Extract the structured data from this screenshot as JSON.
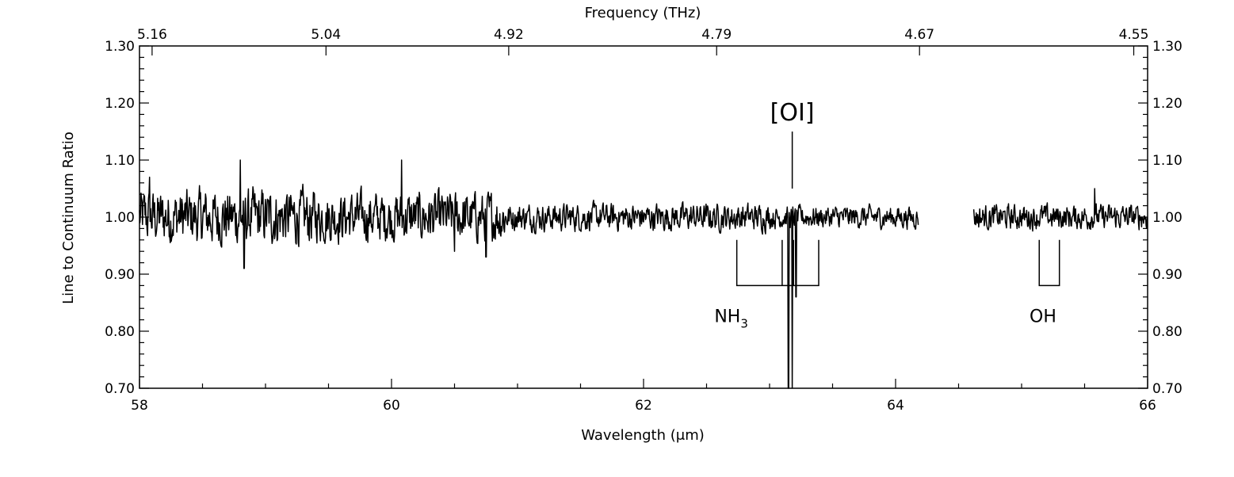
{
  "chart_data": {
    "type": "line",
    "title": "",
    "xlabel": "Wavelength (μm)",
    "x2label": "Frequency (THz)",
    "ylabel": "Line to Continuum Ratio",
    "xlim": [
      58,
      66
    ],
    "ylim": [
      0.7,
      1.3
    ],
    "xticks": [
      "58",
      "60",
      "62",
      "64",
      "66"
    ],
    "xtick_values": [
      58,
      60,
      62,
      64,
      66
    ],
    "x2ticks": [
      "5.16",
      "5.04",
      "4.92",
      "4.79",
      "4.67",
      "4.55"
    ],
    "x2tick_wavelengths": [
      58.1,
      59.48,
      60.93,
      62.58,
      64.19,
      65.89
    ],
    "yticks": [
      "0.70",
      "0.80",
      "0.90",
      "1.00",
      "1.10",
      "1.20",
      "1.30"
    ],
    "ytick_values": [
      0.7,
      0.8,
      0.9,
      1.0,
      1.1,
      1.2,
      1.3
    ],
    "grid": false,
    "series": [
      {
        "segments": [
          {
            "x_start": 58.0,
            "x_end": 64.18,
            "baseline": 1.0
          },
          {
            "x_start": 64.62,
            "x_end": 66.0,
            "baseline": 1.0
          }
        ],
        "noise_profile": [
          {
            "x_start": 58.0,
            "x_end": 59.4,
            "amplitude": 0.045
          },
          {
            "x_start": 59.4,
            "x_end": 60.9,
            "amplitude": 0.04
          },
          {
            "x_start": 60.9,
            "x_end": 63.0,
            "amplitude": 0.022
          },
          {
            "x_start": 63.0,
            "x_end": 64.18,
            "amplitude": 0.018
          },
          {
            "x_start": 64.62,
            "x_end": 66.0,
            "amplitude": 0.02
          }
        ],
        "features": [
          {
            "x": 58.08,
            "y": 1.07
          },
          {
            "x": 58.8,
            "y": 0.85
          },
          {
            "x": 58.8,
            "y": 1.1
          },
          {
            "x": 58.83,
            "y": 0.91
          },
          {
            "x": 60.08,
            "y": 1.1
          },
          {
            "x": 60.5,
            "y": 0.94
          },
          {
            "x": 60.75,
            "y": 0.93
          },
          {
            "x": 63.15,
            "y": 0.7
          },
          {
            "x": 63.18,
            "y": 0.7
          },
          {
            "x": 63.21,
            "y": 0.86
          },
          {
            "x": 65.58,
            "y": 1.05
          }
        ]
      }
    ],
    "annotations": {
      "oi": {
        "label": "[OI]",
        "x": 63.18,
        "line_from": 1.15,
        "line_to": 1.05
      },
      "nh3": {
        "label": "NH3",
        "label_main": "NH",
        "label_sub": "3",
        "bracket_left": 62.74,
        "bracket_right": 63.39,
        "inner_lines": [
          63.1,
          63.19
        ],
        "top": 0.96,
        "bottom": 0.88
      },
      "oh": {
        "label": "OH",
        "bracket_left": 65.14,
        "bracket_right": 65.3,
        "top": 0.96,
        "bottom": 0.88
      }
    }
  }
}
